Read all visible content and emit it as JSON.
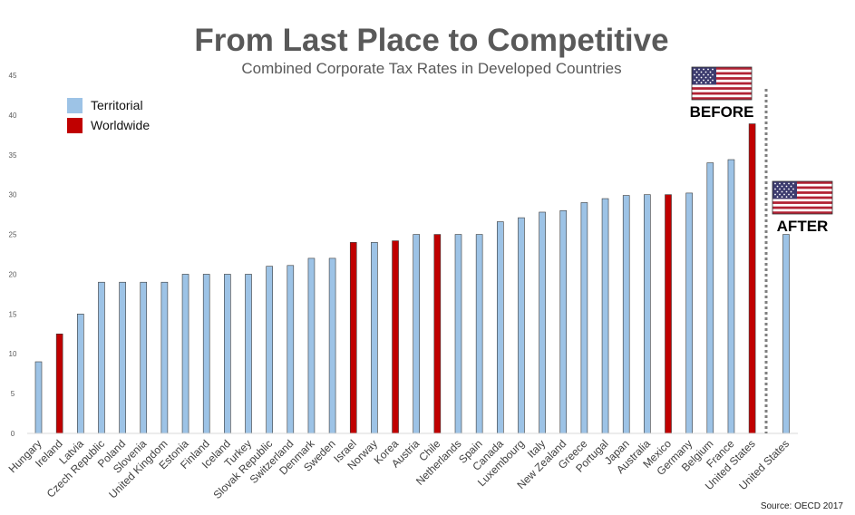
{
  "chart_data": {
    "type": "bar",
    "title": "From Last Place to Competitive",
    "subtitle": "Combined Corporate Tax Rates in Developed Countries",
    "source": "Source:  OECD 2017",
    "ylim": [
      0,
      45
    ],
    "yticks": [
      0,
      5,
      10,
      15,
      20,
      25,
      30,
      35,
      40,
      45
    ],
    "grid": false,
    "legend_position": "top-left",
    "legend": [
      {
        "key": "territorial",
        "label": "Territorial",
        "color": "#9dc3e6"
      },
      {
        "key": "worldwide",
        "label": "Worldwide",
        "color": "#c00000"
      }
    ],
    "categories": [
      "Hungary",
      "Ireland",
      "Latvia",
      "Czech Republic",
      "Poland",
      "Slovenia",
      "United Kingdom",
      "Estonia",
      "Finland",
      "Iceland",
      "Turkey",
      "Slovak Republic",
      "Switzerland",
      "Denmark",
      "Sweden",
      "Israel",
      "Norway",
      "Korea",
      "Austria",
      "Chile",
      "Netherlands",
      "Spain",
      "Canada",
      "Luxembourg",
      "Italy",
      "New Zealand",
      "Greece",
      "Portugal",
      "Japan",
      "Australia",
      "Mexico",
      "Germany",
      "Belgium",
      "France",
      "United States"
    ],
    "values": [
      9,
      12.5,
      15,
      19,
      19,
      19,
      19,
      20,
      20,
      20,
      20,
      21,
      21.1,
      22,
      22,
      24,
      24,
      24.2,
      25,
      25,
      25,
      25,
      26.6,
      27.1,
      27.8,
      28,
      29,
      29.5,
      29.9,
      30,
      30,
      30.2,
      34,
      34.4,
      38.9
    ],
    "systems": [
      "territorial",
      "worldwide",
      "territorial",
      "territorial",
      "territorial",
      "territorial",
      "territorial",
      "territorial",
      "territorial",
      "territorial",
      "territorial",
      "territorial",
      "territorial",
      "territorial",
      "territorial",
      "worldwide",
      "territorial",
      "worldwide",
      "territorial",
      "worldwide",
      "territorial",
      "territorial",
      "territorial",
      "territorial",
      "territorial",
      "territorial",
      "territorial",
      "territorial",
      "territorial",
      "territorial",
      "worldwide",
      "territorial",
      "territorial",
      "territorial",
      "worldwide"
    ],
    "after": {
      "category": "United States",
      "value": 25,
      "system": "territorial"
    },
    "annotations": {
      "before": "BEFORE",
      "after": "AFTER"
    },
    "flag_icon": "us-flag-icon"
  }
}
